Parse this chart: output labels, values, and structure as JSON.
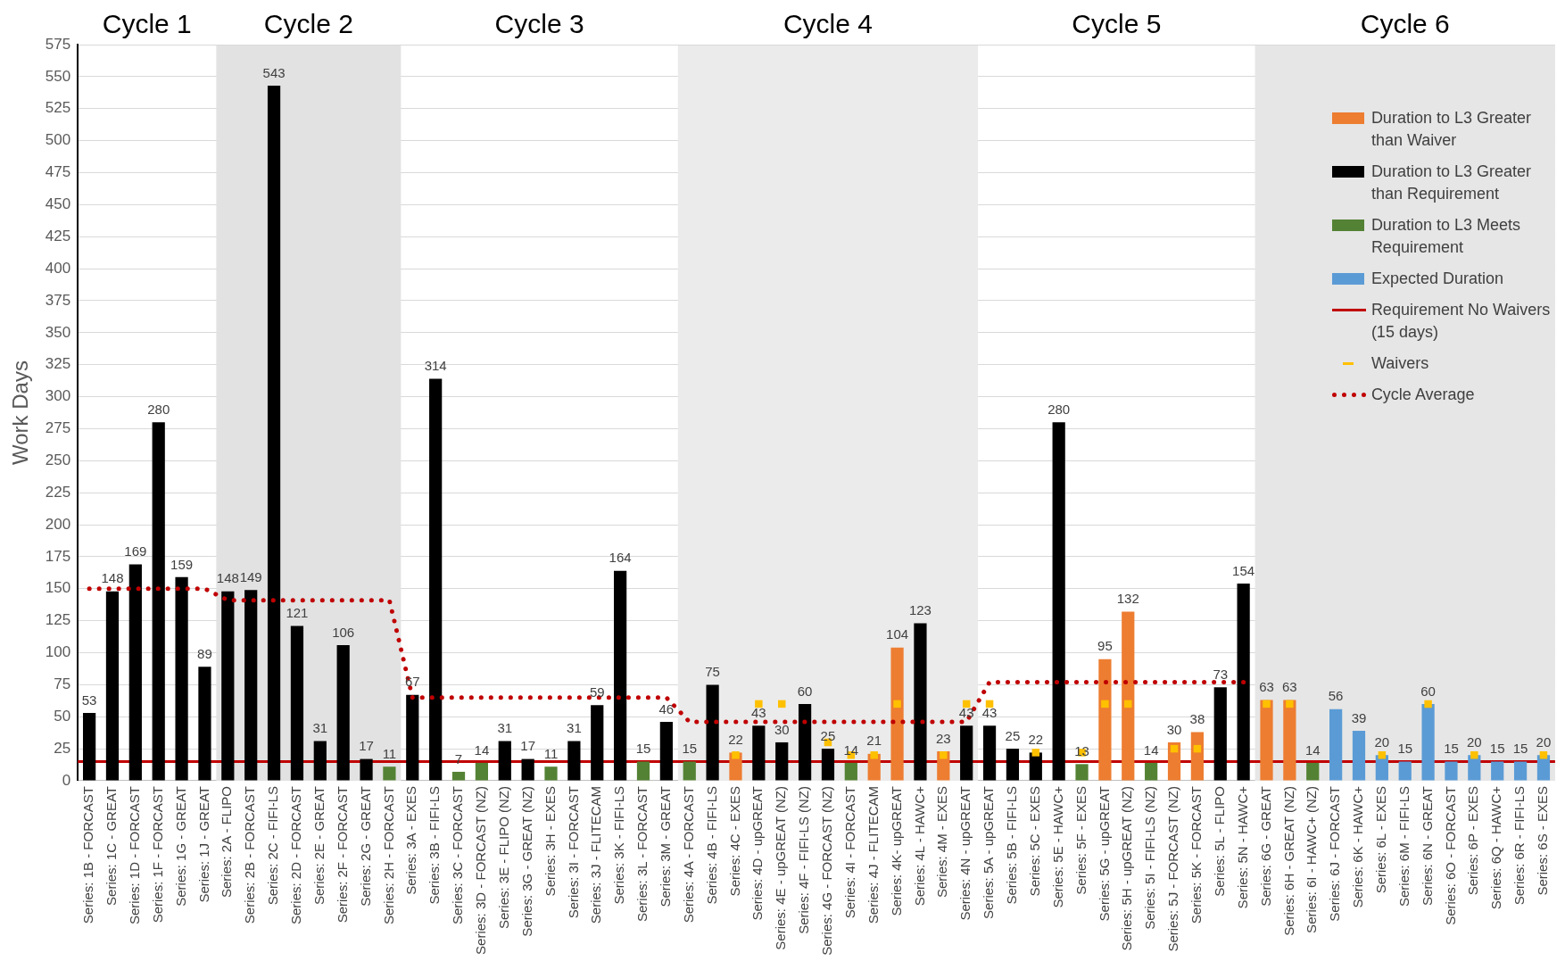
{
  "chart_data": {
    "type": "bar",
    "ylabel": "Work Days",
    "categories": [
      "Series: 1B - FORCAST",
      "Series: 1C - GREAT",
      "Series: 1D - FORCAST",
      "Series: 1F - FORCAST",
      "Series: 1G - GREAT",
      "Series: 1J - GREAT",
      "Series: 2A - FLIPO",
      "Series: 2B - FORCAST",
      "Series: 2C - FIFI-LS",
      "Series: 2D - FORCAST",
      "Series: 2E - GREAT",
      "Series: 2F - FORCAST",
      "Series: 2G - GREAT",
      "Series: 2H - FORCAST",
      "Series: 3A - EXES",
      "Series: 3B - FIFI-LS",
      "Series: 3C - FORCAST",
      "Series: 3D - FORCAST (NZ)",
      "Series: 3E - FLIPO (NZ)",
      "Series: 3G - GREAT (NZ)",
      "Series: 3H - EXES",
      "Series: 3I - FORCAST",
      "Series: 3J - FLITECAM",
      "Series: 3K - FIFI-LS",
      "Series: 3L - FORCAST",
      "Series: 3M - GREAT",
      "Series: 4A - FORCAST",
      "Series: 4B - FIFI-LS",
      "Series: 4C - EXES",
      "Series: 4D - upGREAT",
      "Series: 4E - upGREAT (NZ)",
      "Series: 4F - FIFI-LS (NZ)",
      "Series: 4G - FORCAST (NZ)",
      "Series: 4I - FORCAST",
      "Series: 4J - FLITECAM",
      "Series: 4K- upGREAT",
      "Series: 4L - HAWC+",
      "Series: 4M - EXES",
      "Series: 4N - upGREAT",
      "Series: 5A - upGREAT",
      "Series: 5B - FIFI-LS",
      "Series: 5C - EXES",
      "Series: 5E - HAWC+",
      "Series: 5F - EXES",
      "Series: 5G - upGREAT",
      "Series: 5H - upGREAT (NZ)",
      "Series: 5I - FIFI-LS (NZ)",
      "Series: 5J - FORCAST (NZ)",
      "Series: 5K - FORCAST",
      "Series: 5L - FLIPO",
      "Series: 5N - HAWC+",
      "Series: 6G - GREAT",
      "Series: 6H - GREAT (NZ)",
      "Series: 6I - HAWC+ (NZ)",
      "Series: 6J - FORCAST",
      "Series: 6K - HAWC+",
      "Series: 6L - EXES",
      "Series: 6M - FIFI-LS",
      "Series: 6N - GREAT",
      "Series: 6O - FORCAST",
      "Series: 6P - EXES",
      "Series: 6Q - HAWC+",
      "Series: 6R - FIFI-LS",
      "Series: 6S - EXES"
    ],
    "series": [
      {
        "name": "Duration to L3 Greater than Waiver",
        "color": "#ed7d31",
        "values": [
          null,
          null,
          null,
          null,
          null,
          null,
          null,
          null,
          null,
          null,
          null,
          null,
          null,
          null,
          null,
          null,
          null,
          null,
          null,
          null,
          null,
          null,
          null,
          null,
          null,
          null,
          null,
          null,
          22,
          null,
          null,
          null,
          null,
          null,
          21,
          104,
          null,
          23,
          null,
          null,
          null,
          null,
          null,
          null,
          95,
          132,
          null,
          30,
          38,
          null,
          null,
          63,
          63,
          null,
          null,
          null,
          null,
          null,
          null,
          null,
          null,
          null,
          null,
          null
        ],
        "value_labels": [
          null,
          null,
          null,
          null,
          null,
          null,
          null,
          null,
          null,
          null,
          null,
          null,
          null,
          null,
          null,
          null,
          null,
          null,
          null,
          null,
          null,
          null,
          null,
          null,
          null,
          null,
          null,
          null,
          "22",
          null,
          null,
          null,
          null,
          null,
          "21",
          "104",
          null,
          "23",
          null,
          null,
          null,
          null,
          null,
          null,
          "95",
          "132",
          null,
          "30",
          "38",
          null,
          null,
          "63",
          "63",
          null,
          null,
          null,
          null,
          null,
          null,
          null,
          null,
          null,
          null,
          null
        ]
      },
      {
        "name": "Duration to L3 Greater than Requirement",
        "color": "#000000",
        "values": [
          53,
          148,
          169,
          280,
          159,
          89,
          148,
          149,
          543,
          121,
          31,
          106,
          17,
          null,
          67,
          314,
          null,
          null,
          31,
          17,
          null,
          31,
          59,
          164,
          null,
          46,
          null,
          75,
          null,
          43,
          30,
          60,
          25,
          null,
          null,
          null,
          123,
          null,
          43,
          43,
          25,
          22,
          280,
          null,
          null,
          null,
          null,
          null,
          null,
          73,
          154,
          null,
          null,
          null,
          null,
          null,
          null,
          null,
          null,
          null,
          null,
          null,
          null,
          null
        ],
        "value_labels": [
          "53",
          "148",
          "169",
          "280",
          "159",
          "89",
          "148",
          "149",
          "543",
          "121",
          "31",
          "106",
          "17",
          null,
          "67",
          "314",
          null,
          null,
          "31",
          "17",
          null,
          "31",
          "59",
          "164",
          null,
          "46",
          null,
          "75",
          null,
          "43",
          "30",
          "60",
          "25",
          null,
          null,
          null,
          "123",
          null,
          "43",
          "43",
          "25",
          "22",
          "280",
          null,
          null,
          null,
          null,
          null,
          null,
          "73",
          "154",
          null,
          null,
          null,
          null,
          null,
          null,
          null,
          null,
          null,
          null,
          null,
          null,
          null
        ]
      },
      {
        "name": "Duration to L3 Meets Requirement",
        "color": "#548235",
        "values": [
          null,
          null,
          null,
          null,
          null,
          null,
          null,
          null,
          null,
          null,
          null,
          null,
          null,
          11,
          null,
          null,
          7,
          14,
          null,
          null,
          11,
          null,
          null,
          null,
          15,
          null,
          15,
          null,
          null,
          null,
          null,
          null,
          null,
          14,
          null,
          null,
          null,
          null,
          null,
          null,
          null,
          null,
          null,
          13,
          null,
          null,
          14,
          null,
          null,
          null,
          null,
          null,
          null,
          14,
          null,
          null,
          null,
          null,
          null,
          null,
          null,
          null,
          null,
          null
        ],
        "value_labels": [
          null,
          null,
          null,
          null,
          null,
          null,
          null,
          null,
          null,
          null,
          null,
          null,
          null,
          "11",
          null,
          null,
          "7",
          "14",
          null,
          null,
          "11",
          null,
          null,
          null,
          "15",
          null,
          "15",
          null,
          null,
          null,
          null,
          null,
          null,
          "14",
          null,
          null,
          null,
          null,
          null,
          null,
          null,
          null,
          null,
          "13",
          null,
          null,
          "14",
          null,
          null,
          null,
          null,
          null,
          null,
          "14",
          null,
          null,
          null,
          null,
          null,
          null,
          null,
          null,
          null,
          null
        ]
      },
      {
        "name": "Expected Duration",
        "color": "#5b9bd5",
        "values": [
          null,
          null,
          null,
          null,
          null,
          null,
          null,
          null,
          null,
          null,
          null,
          null,
          null,
          null,
          null,
          null,
          null,
          null,
          null,
          null,
          null,
          null,
          null,
          null,
          null,
          null,
          null,
          null,
          null,
          null,
          null,
          null,
          null,
          null,
          null,
          null,
          null,
          null,
          null,
          null,
          null,
          null,
          null,
          null,
          null,
          null,
          null,
          null,
          null,
          null,
          null,
          null,
          null,
          null,
          56,
          39,
          20,
          15,
          60,
          15,
          20,
          15,
          15,
          20
        ],
        "value_labels": [
          null,
          null,
          null,
          null,
          null,
          null,
          null,
          null,
          null,
          null,
          null,
          null,
          null,
          null,
          null,
          null,
          null,
          null,
          null,
          null,
          null,
          null,
          null,
          null,
          null,
          null,
          null,
          null,
          null,
          null,
          null,
          null,
          null,
          null,
          null,
          null,
          null,
          null,
          null,
          null,
          null,
          null,
          null,
          null,
          null,
          null,
          null,
          null,
          null,
          null,
          null,
          null,
          null,
          null,
          "56",
          "39",
          "20",
          "15",
          "60",
          "15",
          "20",
          "15",
          "15",
          "20"
        ]
      },
      {
        "name": "Waivers",
        "type": "scatter",
        "marker": "square",
        "color": "#ffc000",
        "values": [
          null,
          null,
          null,
          null,
          null,
          null,
          null,
          null,
          null,
          null,
          null,
          null,
          null,
          null,
          null,
          null,
          null,
          null,
          null,
          null,
          null,
          null,
          null,
          null,
          null,
          null,
          null,
          null,
          20,
          60,
          60,
          null,
          30,
          20,
          20,
          60,
          null,
          20,
          60,
          60,
          null,
          22,
          null,
          22,
          60,
          60,
          null,
          25,
          25,
          null,
          null,
          60,
          60,
          null,
          null,
          null,
          20,
          null,
          60,
          null,
          20,
          null,
          null,
          20
        ]
      },
      {
        "name": "Cycle Average",
        "type": "line",
        "line_style": "dotted",
        "color": "#c00000",
        "values": [
          150,
          150,
          150,
          150,
          150,
          150,
          141,
          141,
          141,
          141,
          141,
          141,
          141,
          141,
          65,
          65,
          65,
          65,
          65,
          65,
          65,
          65,
          65,
          65,
          65,
          65,
          46,
          46,
          46,
          46,
          46,
          46,
          46,
          46,
          46,
          46,
          46,
          46,
          46,
          77,
          77,
          77,
          77,
          77,
          77,
          77,
          77,
          77,
          77,
          77,
          77,
          null,
          null,
          null,
          null,
          null,
          null,
          null,
          null,
          null,
          null,
          null,
          null,
          null
        ]
      }
    ],
    "ref_lines": [
      {
        "axis": "y",
        "value": 15,
        "label": "Requirement No Waivers (15 days)",
        "color": "#c00000"
      }
    ],
    "bands": [
      {
        "axis": "x",
        "from": "Series: 2A - FLIPO",
        "to": "Series: 2H - FORCAST",
        "label": "Cycle 2",
        "color": "#e2e2e2"
      },
      {
        "axis": "x",
        "from": "Series: 4A - FORCAST",
        "to": "Series: 4N - upGREAT",
        "label": "Cycle 4",
        "color": "#ebebeb"
      },
      {
        "axis": "x",
        "from": "Series: 6G - GREAT",
        "to": "Series: 6S - EXES",
        "label": "Cycle 6",
        "color": "#e6e6e6"
      }
    ],
    "annotations": [
      "Cycle 1",
      "Cycle 3",
      "Cycle 5"
    ],
    "ylim": [
      0,
      575
    ],
    "yticks": [
      0,
      25,
      50,
      75,
      100,
      125,
      150,
      175,
      200,
      225,
      250,
      275,
      300,
      325,
      350,
      375,
      400,
      425,
      450,
      475,
      500,
      525,
      550,
      575
    ],
    "grid": "y",
    "legend": "top right"
  }
}
